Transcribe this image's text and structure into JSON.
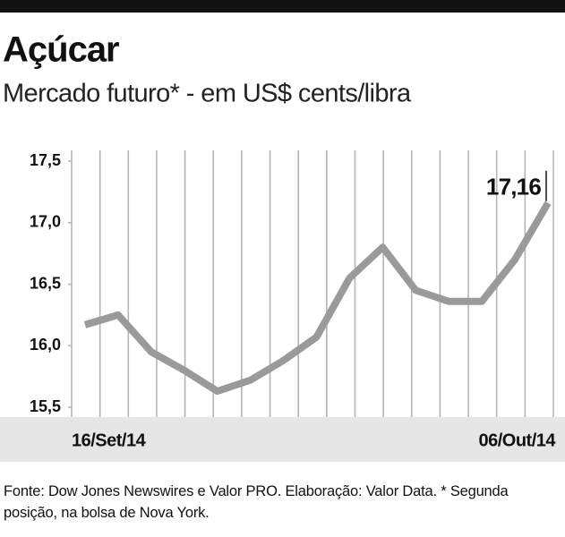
{
  "chart_data": {
    "type": "line",
    "title": "Açúcar",
    "subtitle": "Mercado futuro* - em US$ cents/libra",
    "categories": [
      "16/Set/14",
      null,
      null,
      null,
      null,
      null,
      null,
      null,
      null,
      null,
      null,
      null,
      null,
      null,
      "06/Out/14"
    ],
    "series": [
      {
        "color": "#9a9a9a",
        "values": [
          16.17,
          16.25,
          15.95,
          15.8,
          15.63,
          15.72,
          15.88,
          16.07,
          16.55,
          16.8,
          16.45,
          16.36,
          16.36,
          16.7,
          17.16
        ],
        "value_labels": [
          null,
          null,
          null,
          null,
          null,
          null,
          null,
          null,
          null,
          null,
          null,
          null,
          null,
          null,
          "17,16"
        ]
      }
    ],
    "ylim": [
      15.5,
      17.5
    ],
    "yticks": [
      {
        "value": 15.5,
        "label": "15,5"
      },
      {
        "value": 16.0,
        "label": "16,0"
      },
      {
        "value": 16.5,
        "label": "16,5"
      },
      {
        "value": 17.0,
        "label": "17,0"
      },
      {
        "value": 17.5,
        "label": "17,5"
      }
    ],
    "source": "Fonte: Dow Jones Newswires e Valor PRO. Elaboração: Valor Data. * Segunda posição, na bolsa de Nova York."
  }
}
